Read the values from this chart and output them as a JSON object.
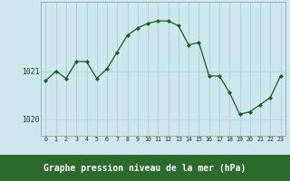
{
  "x": [
    0,
    1,
    2,
    3,
    4,
    5,
    6,
    7,
    8,
    9,
    10,
    11,
    12,
    13,
    14,
    15,
    16,
    17,
    18,
    19,
    20,
    21,
    22,
    23
  ],
  "y": [
    1020.8,
    1021.0,
    1020.85,
    1021.2,
    1021.2,
    1020.85,
    1021.05,
    1021.4,
    1021.75,
    1021.9,
    1022.0,
    1022.05,
    1022.05,
    1021.95,
    1021.55,
    1021.6,
    1020.9,
    1020.9,
    1020.55,
    1020.1,
    1020.15,
    1020.3,
    1020.45,
    1020.9
  ],
  "title": "Graphe pression niveau de la mer (hPa)",
  "bg_color": "#cce8ee",
  "line_color": "#1a5c1a",
  "marker_color": "#1a5c1a",
  "grid_color": "#aacccc",
  "border_color": "#999999",
  "title_bg_color": "#2d6a2d",
  "title_text_color": "#ffffff",
  "ytick_labels": [
    "1020",
    "1021"
  ],
  "ytick_values": [
    1020,
    1021
  ],
  "ylim": [
    1019.65,
    1022.45
  ],
  "xlim": [
    -0.5,
    23.5
  ]
}
